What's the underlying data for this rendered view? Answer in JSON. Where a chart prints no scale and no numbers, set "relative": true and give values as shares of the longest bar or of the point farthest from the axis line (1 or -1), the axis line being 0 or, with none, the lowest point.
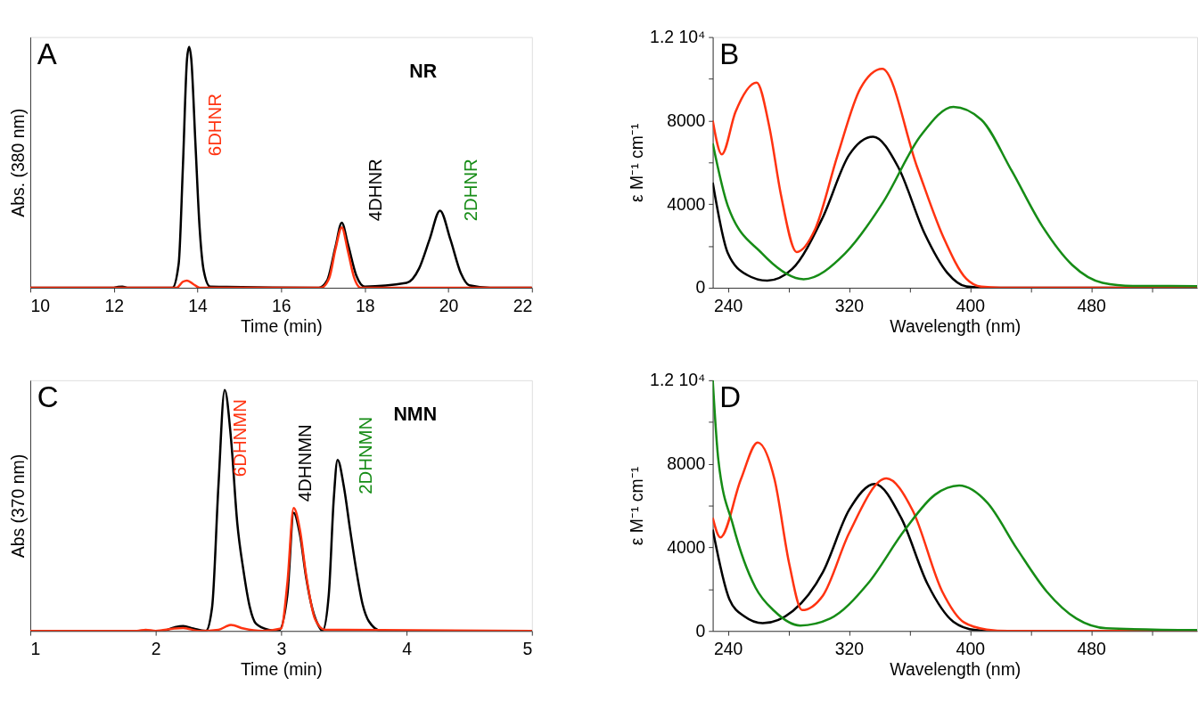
{
  "chart_data": [
    {
      "type": "line",
      "relative": true,
      "xlabel": "Time (min)",
      "ylabel": "Abs. (380 nm)",
      "xlim": [
        10,
        22
      ],
      "xticks": [
        10,
        12,
        14,
        16,
        18,
        20,
        22
      ],
      "grid": false,
      "annotations": [
        "A",
        "NR",
        "6DHNR",
        "4DHNR",
        "2DHNR"
      ],
      "series": [
        {
          "color": "#000000",
          "x": [
            10,
            12,
            12.1,
            12.2,
            12.35,
            13.4,
            13.55,
            13.65,
            13.75,
            13.8,
            13.85,
            13.95,
            14.05,
            14.15,
            14.3,
            16.9,
            17.1,
            17.3,
            17.45,
            17.6,
            17.8,
            18.0,
            19.0,
            19.3,
            19.55,
            19.8,
            20.05,
            20.3,
            20.5,
            21,
            22
          ],
          "values": [
            0,
            0,
            0.004,
            0.005,
            0,
            0,
            0.1,
            0.5,
            0.95,
            1,
            0.95,
            0.6,
            0.25,
            0.07,
            0.005,
            0,
            0.03,
            0.17,
            0.27,
            0.18,
            0.05,
            0.005,
            0.02,
            0.08,
            0.2,
            0.32,
            0.2,
            0.06,
            0.01,
            0,
            0
          ]
        },
        {
          "color": "#ff3311",
          "x": [
            10,
            13.5,
            13.65,
            13.75,
            13.9,
            14.05,
            16.95,
            17.15,
            17.3,
            17.45,
            17.6,
            17.75,
            17.9,
            22
          ],
          "values": [
            0,
            0,
            0.025,
            0.03,
            0.015,
            0,
            0,
            0.04,
            0.16,
            0.25,
            0.15,
            0.04,
            0,
            0
          ]
        }
      ]
    },
    {
      "type": "line",
      "xlabel": "Wavelength (nm)",
      "ylabel": "ε M⁻¹ cm⁻¹",
      "xlim": [
        230,
        550
      ],
      "ylim": [
        0,
        12000
      ],
      "grid": false,
      "xticks": [
        240,
        {
          "value": 280,
          "label": null
        },
        320,
        {
          "value": 360,
          "label": null
        },
        400,
        {
          "value": 440,
          "label": null
        },
        480,
        {
          "value": 520,
          "label": null
        }
      ],
      "yticks": [
        0,
        {
          "value": 2000,
          "label": null
        },
        4000,
        {
          "value": 6000,
          "label": null
        },
        8000,
        {
          "value": 10000,
          "label": null
        },
        {
          "value": 12000,
          "label": "1.2 10⁴"
        }
      ],
      "annotations": [
        "B"
      ],
      "series": [
        {
          "color": "#000000",
          "x": [
            230,
            240,
            252.5,
            266,
            282.5,
            302.5,
            320,
            336,
            352.5,
            370,
            385,
            397.5,
            410,
            450,
            550
          ],
          "values": [
            5030,
            1650,
            620,
            340,
            900,
            3340,
            6350,
            7230,
            5780,
            2590,
            710,
            60,
            0,
            0,
            0
          ]
        },
        {
          "color": "#ff3311",
          "x": [
            230,
            236,
            245,
            259,
            267.5,
            275,
            285.5,
            297.5,
            312.5,
            327.5,
            342,
            365,
            382.5,
            397.5,
            407.5,
            420,
            550
          ],
          "values": [
            8000,
            6390,
            8410,
            9820,
            7660,
            4470,
            1710,
            2780,
            6350,
            9540,
            10480,
            5780,
            2400,
            430,
            50,
            0,
            0
          ]
        },
        {
          "color": "#168c16",
          "x": [
            230,
            240,
            262.5,
            287.5,
            290,
            317.5,
            342.5,
            367.5,
            389,
            407.5,
            427.5,
            447.5,
            467.5,
            487.5,
            507.5,
            550
          ],
          "values": [
            6910,
            3910,
            1650,
            430,
            410,
            1650,
            4090,
            7290,
            8660,
            8040,
            5600,
            2970,
            1090,
            240,
            90,
            80
          ]
        }
      ]
    },
    {
      "type": "line",
      "relative": true,
      "xlabel": "Time (min)",
      "ylabel": "Abs (370 nm)",
      "xlim": [
        1,
        5
      ],
      "xticks": [
        1,
        2,
        3,
        4,
        5
      ],
      "grid": false,
      "annotations": [
        "C",
        "NMN",
        "6DHNMN",
        "4DHNMN",
        "2DHNMN"
      ],
      "series": [
        {
          "color": "#000000",
          "x": [
            1,
            2.05,
            2.15,
            2.22,
            2.3,
            2.4,
            2.45,
            2.5,
            2.55,
            2.6,
            2.65,
            2.7,
            2.75,
            2.8,
            2.9,
            2.98,
            3.05,
            3.1,
            3.15,
            3.2,
            3.25,
            3.3,
            3.33,
            3.38,
            3.42,
            3.45,
            3.5,
            3.55,
            3.6,
            3.65,
            3.7,
            3.8,
            5
          ],
          "values": [
            0,
            0,
            0.015,
            0.02,
            0.01,
            0,
            0.1,
            0.6,
            1,
            0.8,
            0.45,
            0.25,
            0.1,
            0.03,
            0.005,
            0,
            0.15,
            0.49,
            0.4,
            0.22,
            0.09,
            0.02,
            0,
            0.15,
            0.55,
            0.71,
            0.6,
            0.42,
            0.25,
            0.11,
            0.04,
            0,
            0
          ]
        },
        {
          "color": "#ff3311",
          "x": [
            1,
            1.85,
            1.92,
            2.0,
            2.15,
            2.22,
            2.35,
            2.5,
            2.6,
            2.7,
            2.85,
            3.0,
            3.05,
            3.1,
            3.15,
            3.2,
            3.27,
            3.35,
            3.5,
            5
          ],
          "values": [
            0,
            0,
            0.005,
            0,
            0.01,
            0.012,
            0,
            0.005,
            0.025,
            0.01,
            0,
            0.01,
            0.2,
            0.51,
            0.42,
            0.23,
            0.05,
            0.005,
            0.005,
            0
          ]
        }
      ]
    },
    {
      "type": "line",
      "xlabel": "Wavelength (nm)",
      "ylabel": "ε M⁻¹ cm⁻¹",
      "xlim": [
        230,
        550
      ],
      "ylim": [
        0,
        12000
      ],
      "grid": false,
      "xticks": [
        240,
        {
          "value": 280,
          "label": null
        },
        320,
        {
          "value": 360,
          "label": null
        },
        400,
        {
          "value": 440,
          "label": null
        },
        480,
        {
          "value": 520,
          "label": null
        }
      ],
      "yticks": [
        0,
        {
          "value": 2000,
          "label": null
        },
        4000,
        {
          "value": 6000,
          "label": null
        },
        8000,
        {
          "value": 10000,
          "label": null
        },
        {
          "value": 12000,
          "label": "1.2 10⁴"
        }
      ],
      "annotations": [
        "D"
      ],
      "series": [
        {
          "color": "#000000",
          "x": [
            230,
            241,
            251,
            263,
            283,
            302.8,
            320,
            337,
            354.5,
            371.8,
            389,
            403.8,
            415,
            450,
            550
          ],
          "values": [
            4850,
            1520,
            690,
            370,
            960,
            2820,
            5780,
            7040,
            5410,
            2260,
            440,
            40,
            0,
            0,
            0
          ]
        },
        {
          "color": "#ff3311",
          "x": [
            230,
            235,
            248.6,
            259.7,
            270.8,
            280.6,
            289,
            302.8,
            320,
            344.7,
            362,
            381.6,
            396,
            411,
            425,
            550
          ],
          "values": [
            5410,
            4480,
            7260,
            9020,
            7260,
            3190,
            1000,
            1700,
            4670,
            7300,
            5780,
            1890,
            410,
            70,
            0,
            0
          ]
        },
        {
          "color": "#168c16",
          "x": [
            230,
            233.7,
            243.5,
            258.3,
            270.6,
            287.8,
            307.5,
            332.4,
            357,
            376.8,
            392.8,
            411.3,
            431,
            450.6,
            470.3,
            490,
            550
          ],
          "values": [
            12000,
            8190,
            5040,
            2070,
            960,
            260,
            590,
            2260,
            4850,
            6520,
            6960,
            6150,
            3930,
            1890,
            590,
            130,
            40
          ]
        }
      ]
    }
  ]
}
